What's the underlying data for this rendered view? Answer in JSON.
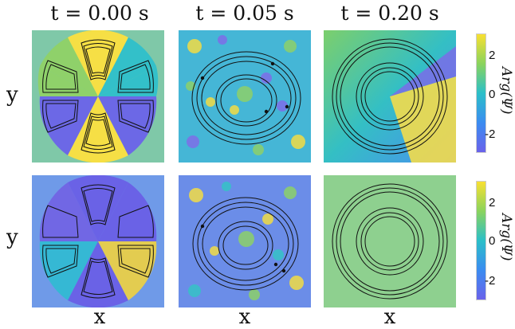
{
  "columns": [
    {
      "title": "t = 0.00 s"
    },
    {
      "title": "t = 0.05 s"
    },
    {
      "title": "t = 0.20 s"
    }
  ],
  "axes": {
    "x_label": "x",
    "y_label": "y"
  },
  "colorbar": {
    "label": "Arg(Ψ)",
    "ticks": [
      "2",
      "0",
      "-2"
    ],
    "colors": [
      "#6a62ea",
      "#3b8cf0",
      "#2bbfc8",
      "#8ad35d",
      "#f8e032"
    ]
  }
}
